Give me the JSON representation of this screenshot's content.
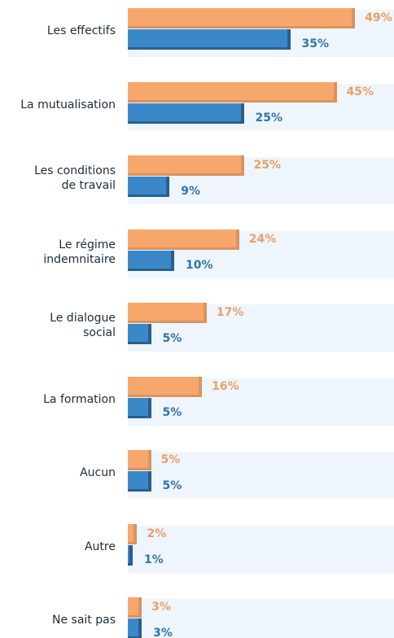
{
  "chart_data": {
    "type": "bar",
    "orientation": "horizontal",
    "categories": [
      "Les effectifs",
      "La mutualisation",
      "Les conditions\nde travail",
      "Le régime\nindemnitaire",
      "Le dialogue\nsocial",
      "La formation",
      "Aucun",
      "Autre",
      "Ne sait pas"
    ],
    "series": [
      {
        "color": "#f7a76c",
        "values": [
          49,
          45,
          25,
          24,
          17,
          16,
          5,
          2,
          3
        ],
        "value_labels": [
          "49%",
          "45%",
          "25%",
          "24%",
          "17%",
          "16%",
          "5%",
          "2%",
          "3%"
        ]
      },
      {
        "color": "#3b88c9",
        "values": [
          35,
          25,
          9,
          10,
          5,
          5,
          5,
          1,
          3
        ],
        "value_labels": [
          "35%",
          "25%",
          "9%",
          "10%",
          "5%",
          "5%",
          "5%",
          "1%",
          "3%"
        ]
      }
    ]
  }
}
